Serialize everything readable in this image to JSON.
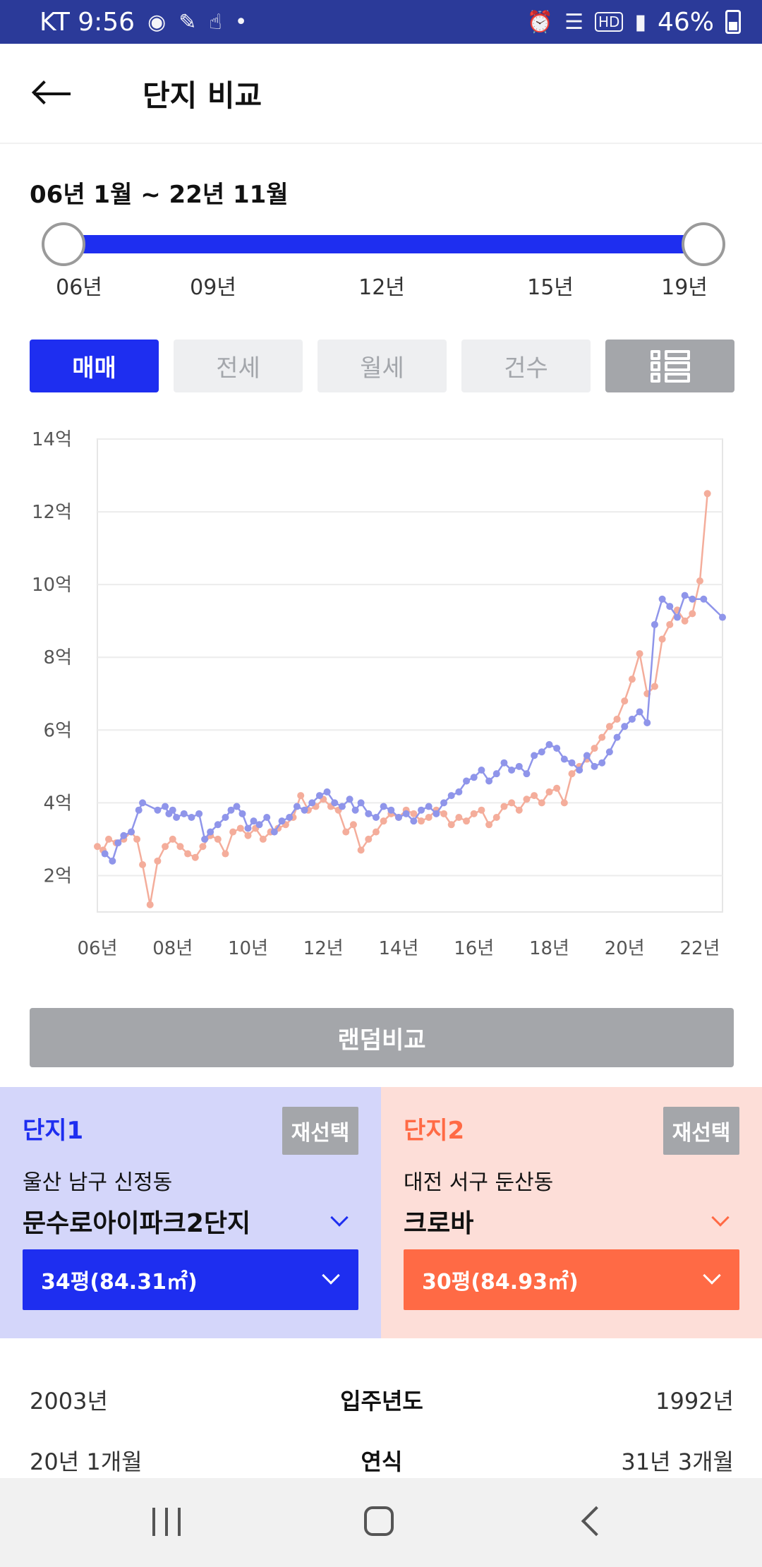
{
  "status_bar": {
    "carrier_time": "KT 9:56",
    "battery": "46%",
    "left_icons": [
      "talk-icon",
      "pen-icon",
      "hand-icon",
      "dot-icon"
    ],
    "right_icons": [
      "alarm-icon",
      "wifi-icon",
      "hd-icon",
      "signal-icon",
      "battery-icon"
    ]
  },
  "header": {
    "title": "단지 비교"
  },
  "range": {
    "label": "06년 1월 ~ 22년 11월",
    "ticks": [
      "06년",
      "09년",
      "12년",
      "15년",
      "19년"
    ]
  },
  "tabs": {
    "items": [
      "매매",
      "전세",
      "월세",
      "건수"
    ],
    "active": "매매"
  },
  "chart_data": {
    "type": "line",
    "title": "",
    "xlabel": "",
    "ylabel": "",
    "ylim": [
      1,
      14
    ],
    "y_ticks": [
      "14억",
      "12억",
      "10억",
      "8억",
      "6억",
      "4억",
      "2억"
    ],
    "x_ticks": [
      "06년",
      "08년",
      "10년",
      "12년",
      "14년",
      "16년",
      "18년",
      "20년",
      "22년"
    ],
    "grid": true,
    "series": [
      {
        "color": "#8f95ea",
        "x": [
          2006.2,
          2006.4,
          2006.55,
          2006.7,
          2006.9,
          2007.1,
          2007.2,
          2007.6,
          2007.8,
          2007.9,
          2008.0,
          2008.1,
          2008.3,
          2008.5,
          2008.7,
          2008.85,
          2009.0,
          2009.2,
          2009.4,
          2009.55,
          2009.7,
          2009.85,
          2010.0,
          2010.15,
          2010.3,
          2010.5,
          2010.7,
          2010.9,
          2011.1,
          2011.3,
          2011.5,
          2011.7,
          2011.9,
          2012.1,
          2012.3,
          2012.5,
          2012.7,
          2012.85,
          2013.0,
          2013.2,
          2013.4,
          2013.6,
          2013.8,
          2014.0,
          2014.2,
          2014.4,
          2014.6,
          2014.8,
          2015.0,
          2015.2,
          2015.4,
          2015.6,
          2015.8,
          2016.0,
          2016.2,
          2016.4,
          2016.6,
          2016.8,
          2017.0,
          2017.2,
          2017.4,
          2017.6,
          2017.8,
          2018.0,
          2018.2,
          2018.4,
          2018.6,
          2018.8,
          2019.0,
          2019.2,
          2019.4,
          2019.6,
          2019.8,
          2020.0,
          2020.2,
          2020.4,
          2020.6,
          2020.8,
          2021.0,
          2021.2,
          2021.4,
          2021.6,
          2021.8,
          2022.1,
          2022.6
        ],
        "values": [
          2.6,
          2.4,
          2.9,
          3.1,
          3.2,
          3.8,
          4.0,
          3.8,
          3.9,
          3.7,
          3.8,
          3.6,
          3.7,
          3.6,
          3.7,
          3.0,
          3.2,
          3.4,
          3.6,
          3.8,
          3.9,
          3.7,
          3.3,
          3.5,
          3.4,
          3.6,
          3.2,
          3.5,
          3.6,
          3.9,
          3.8,
          4.0,
          4.2,
          4.3,
          4.0,
          3.9,
          4.1,
          3.8,
          4.0,
          3.7,
          3.6,
          3.9,
          3.8,
          3.6,
          3.7,
          3.5,
          3.8,
          3.9,
          3.7,
          4.0,
          4.2,
          4.3,
          4.6,
          4.7,
          4.9,
          4.6,
          4.8,
          5.1,
          4.9,
          5.0,
          4.8,
          5.3,
          5.4,
          5.6,
          5.5,
          5.2,
          5.1,
          4.9,
          5.3,
          5.0,
          5.1,
          5.4,
          5.8,
          6.1,
          6.3,
          6.5,
          6.2,
          8.9,
          9.6,
          9.4,
          9.1,
          9.7,
          9.6,
          9.6,
          9.1
        ]
      },
      {
        "color": "#f4ad9b",
        "x": [
          2006.0,
          2006.15,
          2006.3,
          2006.5,
          2006.7,
          2006.9,
          2007.05,
          2007.2,
          2007.4,
          2007.6,
          2007.8,
          2008.0,
          2008.2,
          2008.4,
          2008.6,
          2008.8,
          2009.0,
          2009.2,
          2009.4,
          2009.6,
          2009.8,
          2010.0,
          2010.2,
          2010.4,
          2010.6,
          2010.8,
          2011.0,
          2011.2,
          2011.4,
          2011.6,
          2011.8,
          2012.0,
          2012.2,
          2012.4,
          2012.6,
          2012.8,
          2013.0,
          2013.2,
          2013.4,
          2013.6,
          2013.8,
          2014.0,
          2014.2,
          2014.4,
          2014.6,
          2014.8,
          2015.0,
          2015.2,
          2015.4,
          2015.6,
          2015.8,
          2016.0,
          2016.2,
          2016.4,
          2016.6,
          2016.8,
          2017.0,
          2017.2,
          2017.4,
          2017.6,
          2017.8,
          2018.0,
          2018.2,
          2018.4,
          2018.6,
          2018.8,
          2019.0,
          2019.2,
          2019.4,
          2019.6,
          2019.8,
          2020.0,
          2020.2,
          2020.4,
          2020.6,
          2020.8,
          2021.0,
          2021.2,
          2021.4,
          2021.6,
          2021.8,
          2022.0,
          2022.2
        ],
        "values": [
          2.8,
          2.7,
          3.0,
          2.9,
          3.0,
          3.2,
          3.0,
          2.3,
          1.2,
          2.4,
          2.8,
          3.0,
          2.8,
          2.6,
          2.5,
          2.8,
          3.1,
          3.0,
          2.6,
          3.2,
          3.3,
          3.1,
          3.3,
          3.0,
          3.2,
          3.3,
          3.4,
          3.6,
          4.2,
          3.8,
          3.9,
          4.1,
          3.9,
          3.8,
          3.2,
          3.4,
          2.7,
          3.0,
          3.2,
          3.5,
          3.7,
          3.6,
          3.8,
          3.7,
          3.5,
          3.6,
          3.8,
          3.7,
          3.4,
          3.6,
          3.5,
          3.7,
          3.8,
          3.4,
          3.6,
          3.9,
          4.0,
          3.8,
          4.1,
          4.2,
          4.0,
          4.3,
          4.4,
          4.0,
          4.8,
          5.0,
          5.2,
          5.5,
          5.8,
          6.1,
          6.3,
          6.8,
          7.4,
          8.1,
          7.0,
          7.2,
          8.5,
          8.9,
          9.3,
          9.0,
          9.2,
          10.1,
          12.5
        ]
      }
    ]
  },
  "random_button": {
    "label": "랜덤비교"
  },
  "complex1": {
    "title": "단지1",
    "reselect": "재선택",
    "location": "울산 남구 신정동",
    "name": "문수로아이파크2단지",
    "size": "34평(84.31㎡)"
  },
  "complex2": {
    "title": "단지2",
    "reselect": "재선택",
    "location": "대전 서구 둔산동",
    "name": "크로바",
    "size": "30평(84.93㎡)"
  },
  "info_rows": [
    {
      "left": "2003년",
      "label": "입주년도",
      "right": "1992년"
    },
    {
      "left": "20년 1개월",
      "label": "연식",
      "right": "31년 3개월"
    }
  ]
}
